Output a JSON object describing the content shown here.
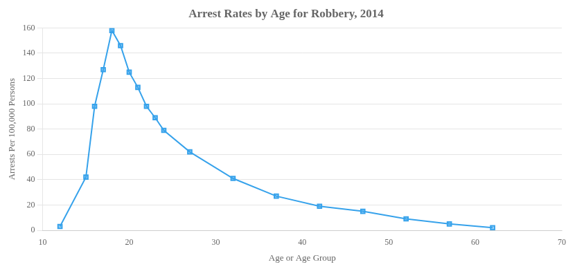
{
  "chart_data": {
    "type": "line",
    "title": "Arrest Rates by Age for Robbery, 2014",
    "xlabel": "Age or Age Group",
    "ylabel": "Arrests Per 100,000 Persons",
    "x": [
      12,
      15,
      16,
      17,
      18,
      19,
      20,
      21,
      22,
      23,
      24,
      27,
      32,
      37,
      42,
      47,
      52,
      57,
      62
    ],
    "values": [
      3,
      42,
      98,
      127,
      158,
      146,
      125,
      113,
      98,
      89,
      79,
      62,
      41,
      27,
      19,
      15,
      9,
      5,
      2
    ],
    "xlim": [
      10,
      70
    ],
    "xticks": [
      10,
      20,
      30,
      40,
      50,
      60,
      70
    ],
    "ylim": [
      0,
      160
    ],
    "yticks": [
      0,
      20,
      40,
      60,
      80,
      100,
      120,
      140,
      160
    ],
    "marker": "square",
    "grid": true
  }
}
